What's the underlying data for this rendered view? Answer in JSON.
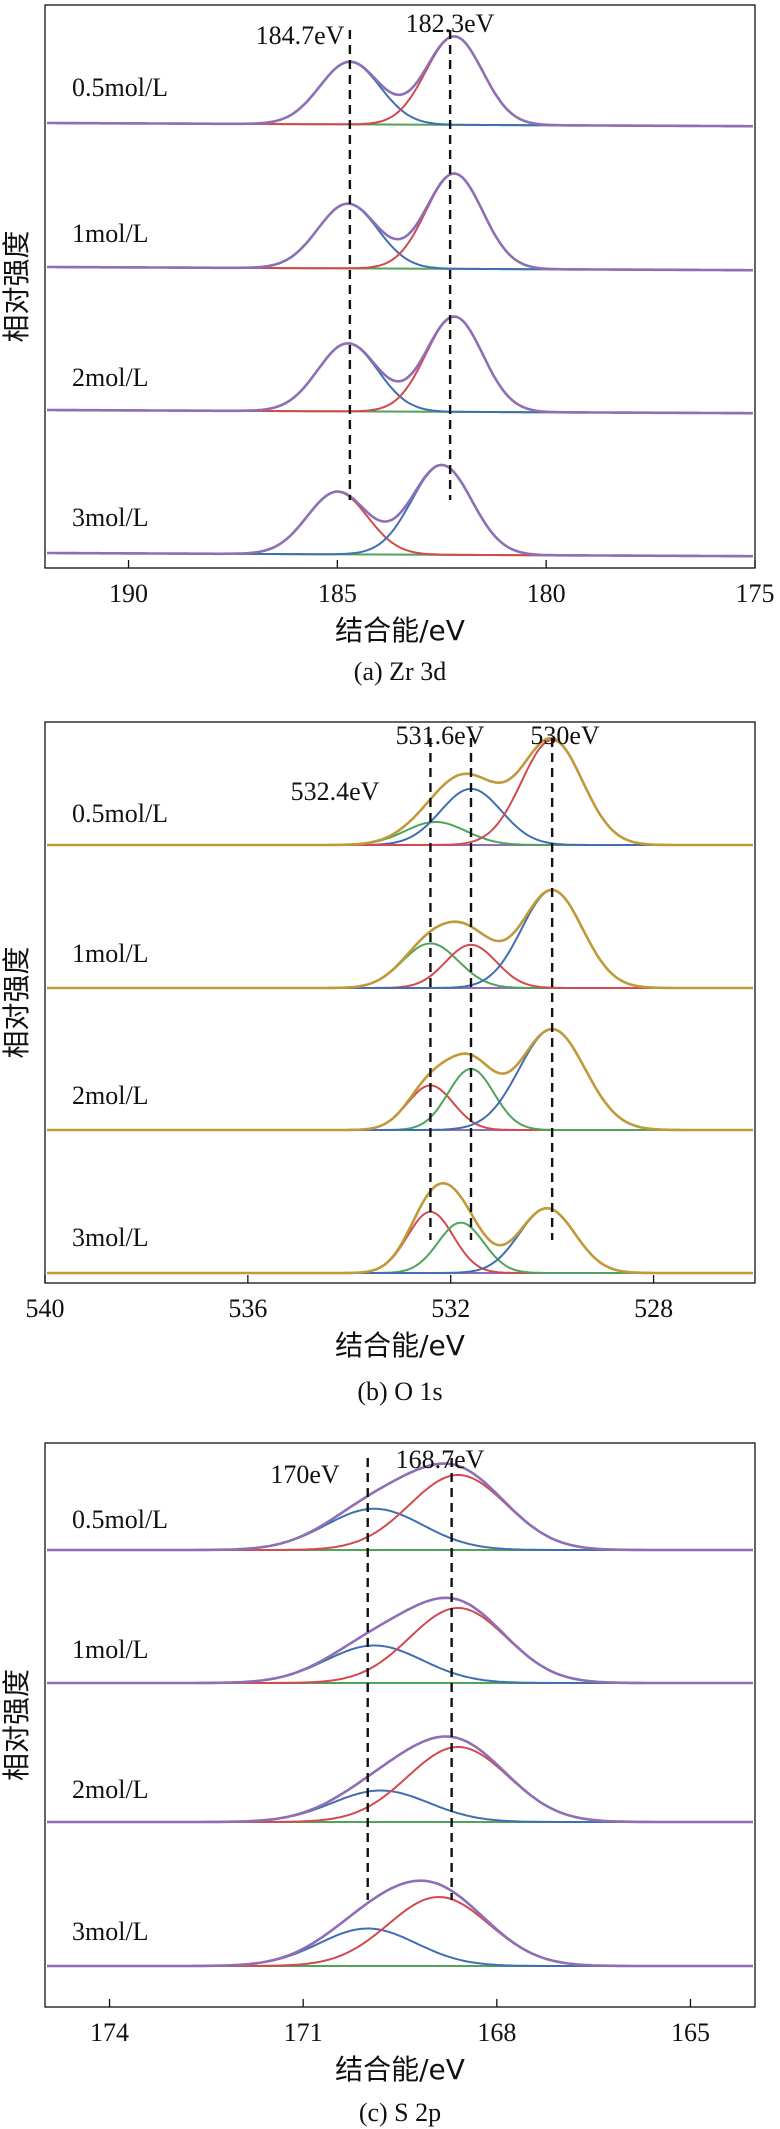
{
  "chart_data": [
    {
      "type": "line",
      "title": "(a) Zr 3d",
      "xlabel": "结合能/eV",
      "ylabel": "相对强度",
      "xlim": [
        192,
        175
      ],
      "xticks": [
        190,
        185,
        180,
        175
      ],
      "ref_lines": [
        184.7,
        182.3
      ],
      "ref_labels": [
        "184.7eV",
        "182.3eV"
      ],
      "component_colors": [
        "#3f6fb0",
        "#d24a4f",
        "#3f6fb0",
        "#d24a4f",
        "#3f6fb0",
        "#d24a4f",
        "#d24a4f",
        "#3f6fb0"
      ],
      "envelope_color": "#8e6fb5",
      "baseline_color": "#4fa35b",
      "series": [
        {
          "name": "0.5mol/L",
          "components": [
            {
              "center": 184.7,
              "height": 0.92,
              "width": 0.72
            },
            {
              "center": 182.2,
              "height": 1.3,
              "width": 0.68
            }
          ]
        },
        {
          "name": "1mol/L",
          "components": [
            {
              "center": 184.75,
              "height": 0.95,
              "width": 0.72
            },
            {
              "center": 182.2,
              "height": 1.4,
              "width": 0.68
            }
          ]
        },
        {
          "name": "2mol/L",
          "components": [
            {
              "center": 184.75,
              "height": 1.0,
              "width": 0.72
            },
            {
              "center": 182.2,
              "height": 1.4,
              "width": 0.68
            }
          ]
        },
        {
          "name": "3mol/L",
          "components": [
            {
              "center": 185.0,
              "height": 0.92,
              "width": 0.72
            },
            {
              "center": 182.5,
              "height": 1.32,
              "width": 0.72
            }
          ]
        }
      ]
    },
    {
      "type": "line",
      "title": "(b) O 1s",
      "xlabel": "结合能/eV",
      "ylabel": "相对强度",
      "xlim": [
        540,
        526
      ],
      "xticks": [
        540,
        536,
        532,
        528
      ],
      "ref_lines": [
        532.4,
        531.6,
        530
      ],
      "ref_labels": [
        "532.4eV",
        "531.6eV",
        "530eV"
      ],
      "envelope_color": "#c09a3a",
      "baseline_color": "#8e6fb5",
      "series": [
        {
          "name": "0.5mol/L",
          "components": [
            {
              "center": 532.3,
              "height": 0.32,
              "width": 0.6,
              "color": "#4fa35b"
            },
            {
              "center": 531.6,
              "height": 0.78,
              "width": 0.6,
              "color": "#3f6fb0"
            },
            {
              "center": 530.0,
              "height": 1.46,
              "width": 0.6,
              "color": "#d24a4f"
            }
          ]
        },
        {
          "name": "1mol/L",
          "components": [
            {
              "center": 532.4,
              "height": 0.62,
              "width": 0.55,
              "color": "#4fa35b"
            },
            {
              "center": 531.6,
              "height": 0.6,
              "width": 0.5,
              "color": "#d24a4f"
            },
            {
              "center": 530.0,
              "height": 1.36,
              "width": 0.6,
              "color": "#3f6fb0"
            }
          ]
        },
        {
          "name": "2mol/L",
          "components": [
            {
              "center": 532.4,
              "height": 0.62,
              "width": 0.45,
              "color": "#d24a4f"
            },
            {
              "center": 531.6,
              "height": 0.85,
              "width": 0.45,
              "color": "#4fa35b"
            },
            {
              "center": 530.0,
              "height": 1.4,
              "width": 0.65,
              "color": "#3f6fb0"
            }
          ]
        },
        {
          "name": "3mol/L",
          "components": [
            {
              "center": 532.4,
              "height": 0.85,
              "width": 0.45,
              "color": "#d24a4f"
            },
            {
              "center": 531.8,
              "height": 0.7,
              "width": 0.45,
              "color": "#4fa35b"
            },
            {
              "center": 530.1,
              "height": 0.9,
              "width": 0.55,
              "color": "#3f6fb0"
            }
          ]
        }
      ]
    },
    {
      "type": "line",
      "title": "(c) S 2p",
      "xlabel": "结合能/eV",
      "ylabel": "相对强度",
      "xlim": [
        175,
        164
      ],
      "xticks": [
        174,
        171,
        168,
        165
      ],
      "ref_lines": [
        170,
        168.7
      ],
      "ref_labels": [
        "170eV",
        "168.7eV"
      ],
      "component_colors": [
        "#3f6fb0",
        "#d24a4f"
      ],
      "envelope_color": "#8e6fb5",
      "baseline_color": "#4fa35b",
      "series": [
        {
          "name": "0.5mol/L",
          "components": [
            {
              "center": 169.9,
              "height": 0.55,
              "width": 0.75
            },
            {
              "center": 168.6,
              "height": 1.0,
              "width": 0.75
            }
          ]
        },
        {
          "name": "1mol/L",
          "components": [
            {
              "center": 169.9,
              "height": 0.5,
              "width": 0.75
            },
            {
              "center": 168.6,
              "height": 1.0,
              "width": 0.75
            }
          ]
        },
        {
          "name": "2mol/L",
          "components": [
            {
              "center": 169.8,
              "height": 0.42,
              "width": 0.75
            },
            {
              "center": 168.6,
              "height": 1.0,
              "width": 0.78
            }
          ]
        },
        {
          "name": "3mol/L",
          "components": [
            {
              "center": 170.0,
              "height": 0.5,
              "width": 0.75
            },
            {
              "center": 168.9,
              "height": 0.92,
              "width": 0.78
            }
          ]
        }
      ]
    }
  ]
}
